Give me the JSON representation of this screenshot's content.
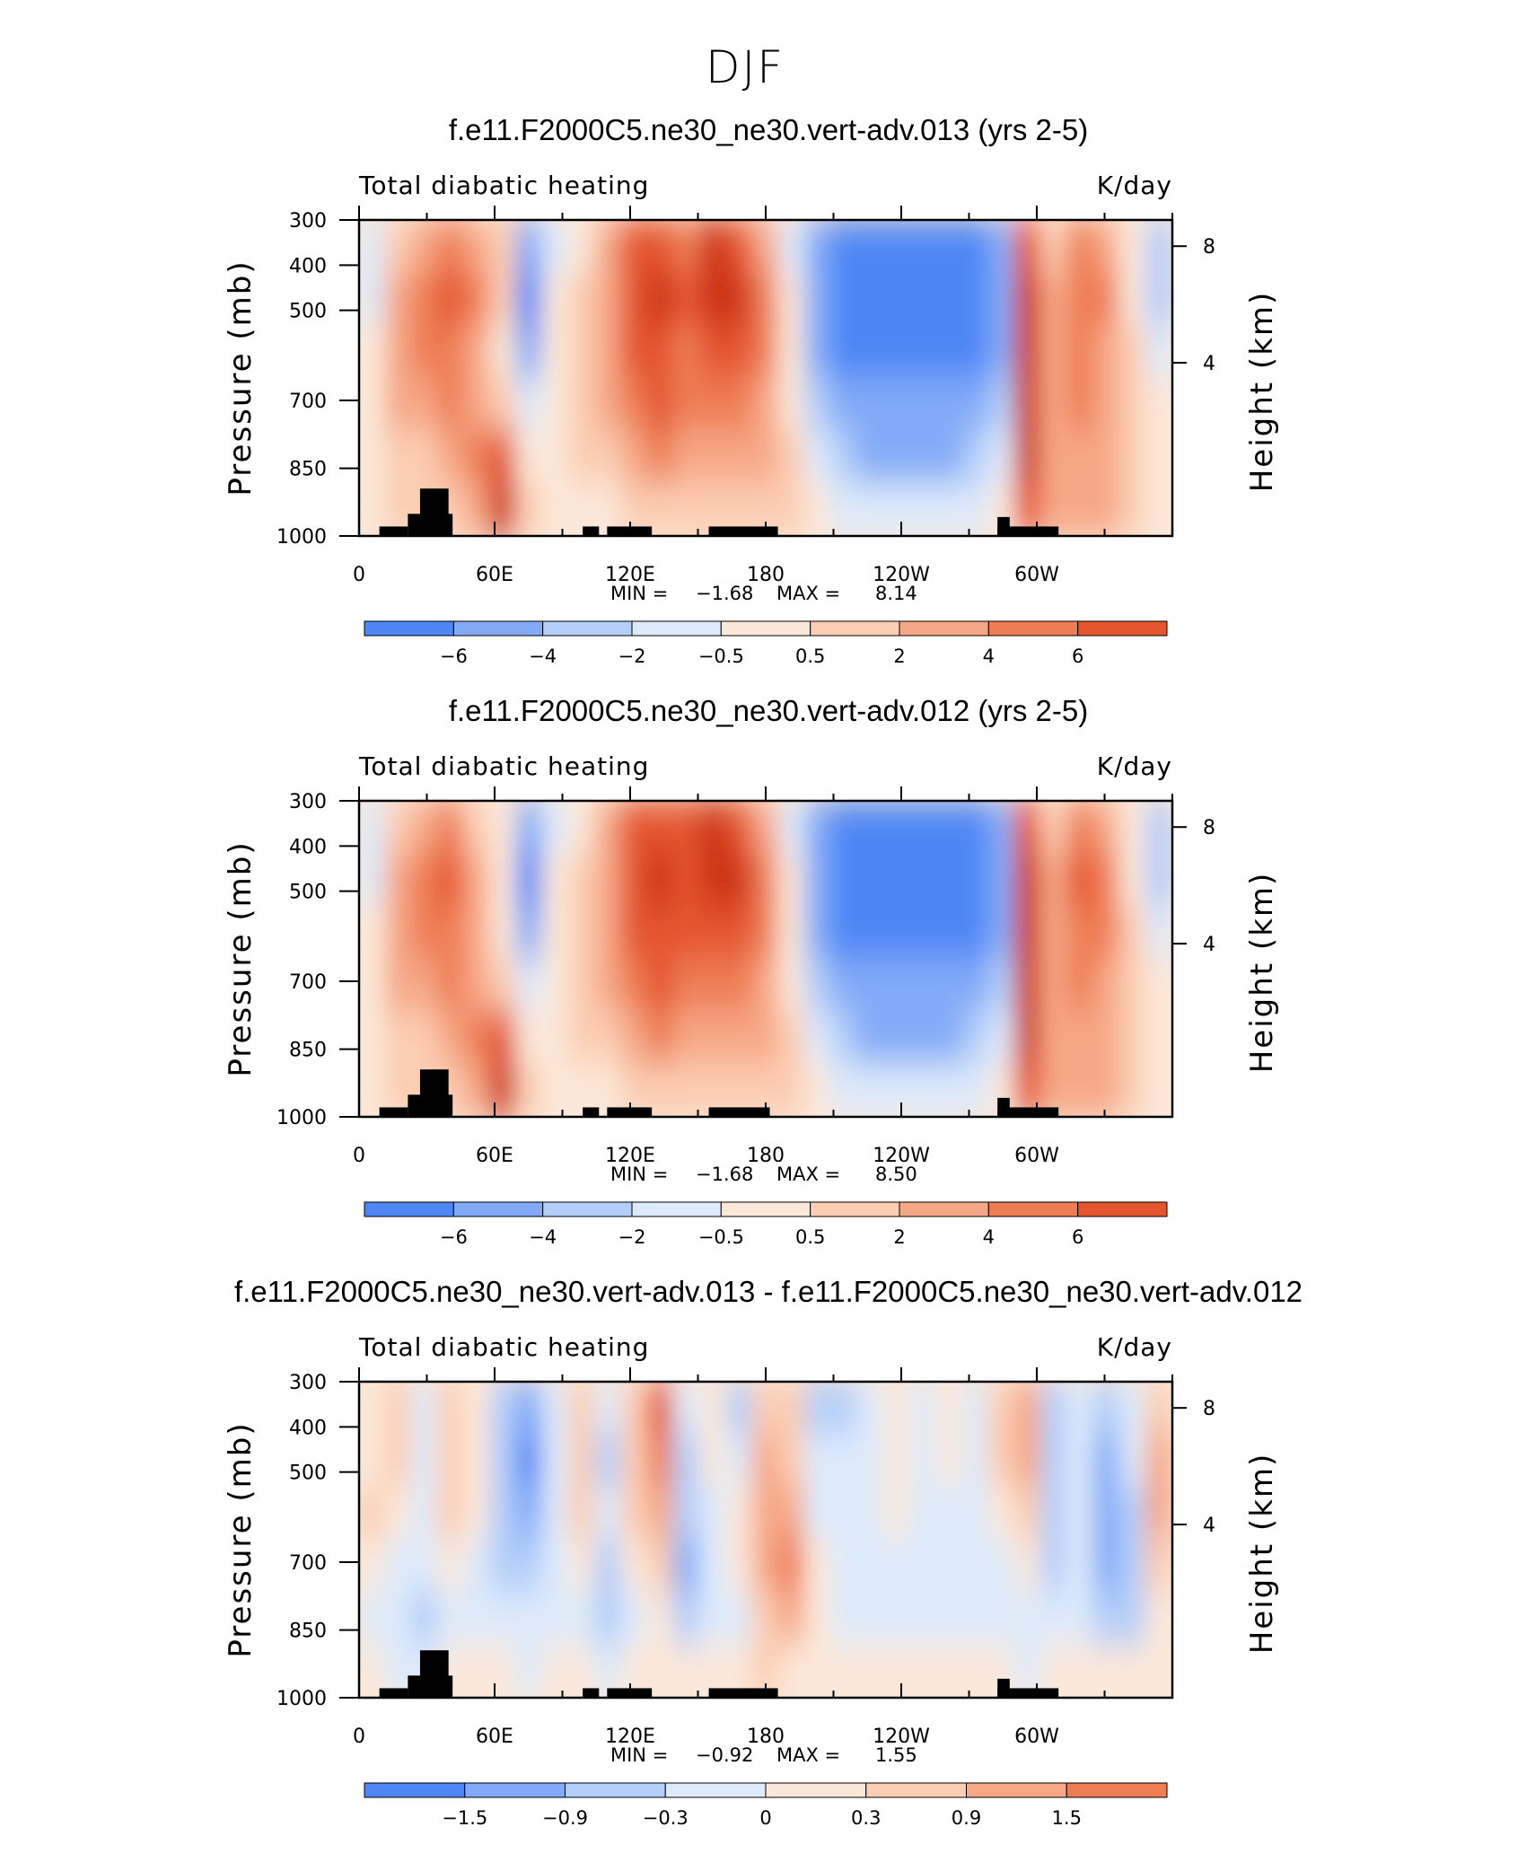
{
  "figure": {
    "title": "DJF"
  },
  "colormap": [
    "#08129e",
    "#0b34d6",
    "#1f5ff0",
    "#4e86f5",
    "#82aaf7",
    "#b3cef9",
    "#ddeafa",
    "#fbe8d9",
    "#fbcdb2",
    "#f6a785",
    "#ee7d54",
    "#e4552e",
    "#cc3616",
    "#a41d0a",
    "#7a0606"
  ],
  "chart_data": [
    {
      "type": "heatmap",
      "title": "f.e11.F2000C5.ne30_ne30.vert-adv.013 (yrs 2-5)",
      "left_label": "Total diabatic heating",
      "right_label": "K/day",
      "ylabel": "Pressure (mb)",
      "y2label": "Height (km)",
      "yticks": [
        "300",
        "400",
        "500",
        "700",
        "850",
        "1000"
      ],
      "y2ticks": [
        "8",
        "4"
      ],
      "xticks": [
        "0",
        "60E",
        "120E",
        "180",
        "120W",
        "60W"
      ],
      "min_label": "MIN =",
      "min": "−1.68",
      "max_label": "MAX =",
      "max": "8.14",
      "levels": [
        "−6",
        "−4",
        "−2",
        "−0.5",
        "0.5",
        "2",
        "4",
        "6"
      ],
      "field": [
        [
          6,
          8,
          9,
          10,
          9,
          8,
          4,
          6,
          7,
          9,
          11,
          11,
          10,
          12,
          11,
          9,
          6,
          4,
          3,
          3,
          3,
          3,
          3,
          3,
          4,
          11,
          8,
          10,
          9,
          7,
          5
        ],
        [
          6,
          9,
          10,
          11,
          10,
          8,
          3,
          7,
          8,
          9,
          11,
          12,
          11,
          12,
          12,
          10,
          7,
          4,
          3,
          3,
          3,
          3,
          3,
          3,
          4,
          12,
          9,
          10,
          10,
          7,
          5
        ],
        [
          7,
          9,
          10,
          10,
          9,
          7,
          4,
          7,
          8,
          9,
          11,
          11,
          10,
          11,
          11,
          10,
          7,
          4,
          3,
          3,
          3,
          3,
          3,
          3,
          4,
          12,
          9,
          10,
          9,
          8,
          6
        ],
        [
          7,
          9,
          9,
          10,
          9,
          8,
          6,
          7,
          8,
          9,
          10,
          11,
          10,
          10,
          10,
          9,
          7,
          5,
          4,
          4,
          4,
          4,
          4,
          4,
          5,
          12,
          9,
          10,
          9,
          8,
          7
        ],
        [
          7,
          8,
          8,
          9,
          10,
          11,
          7,
          7,
          8,
          8,
          9,
          10,
          9,
          9,
          9,
          9,
          8,
          6,
          5,
          4,
          4,
          4,
          4,
          5,
          6,
          12,
          9,
          9,
          9,
          8,
          7
        ],
        [
          7,
          8,
          8,
          8,
          9,
          12,
          8,
          7,
          7,
          7,
          8,
          8,
          8,
          8,
          8,
          8,
          8,
          7,
          6,
          6,
          6,
          6,
          6,
          6,
          7,
          11,
          9,
          9,
          9,
          8,
          7
        ]
      ],
      "mask": [
        [
          0.025,
          0.06,
          0.97
        ],
        [
          0.06,
          0.115,
          0.93
        ],
        [
          0.075,
          0.11,
          0.85
        ],
        [
          0.275,
          0.295,
          0.97
        ],
        [
          0.305,
          0.36,
          0.97
        ],
        [
          0.43,
          0.515,
          0.97
        ],
        [
          0.785,
          0.8,
          0.94
        ],
        [
          0.785,
          0.86,
          0.97
        ]
      ]
    },
    {
      "type": "heatmap",
      "title": "f.e11.F2000C5.ne30_ne30.vert-adv.012 (yrs 2-5)",
      "left_label": "Total diabatic heating",
      "right_label": "K/day",
      "ylabel": "Pressure (mb)",
      "y2label": "Height (km)",
      "yticks": [
        "300",
        "400",
        "500",
        "700",
        "850",
        "1000"
      ],
      "y2ticks": [
        "8",
        "4"
      ],
      "xticks": [
        "0",
        "60E",
        "120E",
        "180",
        "120W",
        "60W"
      ],
      "min_label": "MIN =",
      "min": "−1.68",
      "max_label": "MAX =",
      "max": "8.50",
      "levels": [
        "−6",
        "−4",
        "−2",
        "−0.5",
        "0.5",
        "2",
        "4",
        "6"
      ],
      "field": [
        [
          6,
          8,
          9,
          10,
          8,
          7,
          4,
          6,
          7,
          9,
          11,
          11,
          11,
          12,
          11,
          9,
          6,
          4,
          3,
          3,
          3,
          3,
          3,
          3,
          4,
          11,
          8,
          10,
          9,
          7,
          5
        ],
        [
          6,
          9,
          10,
          11,
          9,
          7,
          3,
          7,
          8,
          9,
          11,
          12,
          11,
          12,
          12,
          10,
          7,
          4,
          3,
          3,
          3,
          3,
          3,
          3,
          4,
          12,
          9,
          11,
          10,
          7,
          5
        ],
        [
          7,
          9,
          10,
          10,
          9,
          7,
          4,
          7,
          8,
          9,
          11,
          11,
          11,
          11,
          11,
          10,
          7,
          4,
          3,
          3,
          3,
          3,
          3,
          3,
          4,
          12,
          9,
          10,
          10,
          8,
          6
        ],
        [
          7,
          9,
          9,
          10,
          9,
          8,
          6,
          7,
          8,
          9,
          10,
          11,
          10,
          10,
          10,
          9,
          7,
          5,
          4,
          4,
          4,
          4,
          4,
          4,
          5,
          12,
          9,
          10,
          9,
          8,
          7
        ],
        [
          7,
          8,
          8,
          9,
          10,
          11,
          7,
          7,
          8,
          8,
          9,
          10,
          9,
          9,
          9,
          9,
          8,
          6,
          5,
          4,
          4,
          4,
          4,
          5,
          6,
          12,
          9,
          9,
          9,
          8,
          7
        ],
        [
          7,
          8,
          8,
          8,
          9,
          12,
          8,
          7,
          7,
          7,
          8,
          8,
          8,
          8,
          8,
          8,
          8,
          7,
          6,
          6,
          6,
          6,
          6,
          6,
          7,
          11,
          9,
          9,
          9,
          8,
          7
        ]
      ],
      "mask": [
        [
          0.025,
          0.06,
          0.97
        ],
        [
          0.06,
          0.115,
          0.93
        ],
        [
          0.075,
          0.11,
          0.85
        ],
        [
          0.275,
          0.295,
          0.97
        ],
        [
          0.305,
          0.36,
          0.97
        ],
        [
          0.43,
          0.505,
          0.97
        ],
        [
          0.785,
          0.8,
          0.94
        ],
        [
          0.785,
          0.86,
          0.97
        ]
      ]
    },
    {
      "type": "heatmap",
      "title": "f.e11.F2000C5.ne30_ne30.vert-adv.013 - f.e11.F2000C5.ne30_ne30.vert-adv.012",
      "left_label": "Total diabatic heating",
      "right_label": "K/day",
      "ylabel": "Pressure (mb)",
      "y2label": "Height (km)",
      "yticks": [
        "300",
        "400",
        "500",
        "700",
        "850",
        "1000"
      ],
      "y2ticks": [
        "8",
        "4"
      ],
      "xticks": [
        "0",
        "60E",
        "120E",
        "180",
        "120W",
        "60W"
      ],
      "min_label": "MIN =",
      "min": "−0.92",
      "max_label": "MAX =",
      "max": "1.55",
      "levels": [
        "−1.5",
        "−0.9",
        "−0.3",
        "0",
        "0.3",
        "0.9",
        "1.5"
      ],
      "field": [
        [
          7,
          8,
          6,
          8,
          7,
          5,
          4,
          6,
          8,
          6,
          8,
          11,
          6,
          7,
          5,
          8,
          8,
          5,
          5,
          6,
          7,
          6,
          7,
          6,
          8,
          9,
          5,
          6,
          5,
          6,
          8
        ],
        [
          7,
          8,
          6,
          8,
          7,
          5,
          3,
          6,
          8,
          5,
          8,
          10,
          5,
          7,
          6,
          9,
          8,
          6,
          6,
          6,
          7,
          6,
          7,
          6,
          8,
          9,
          5,
          6,
          4,
          6,
          9
        ],
        [
          8,
          7,
          6,
          8,
          7,
          5,
          4,
          6,
          8,
          6,
          8,
          9,
          5,
          6,
          7,
          9,
          9,
          6,
          6,
          6,
          7,
          6,
          6,
          6,
          7,
          8,
          5,
          6,
          4,
          5,
          9
        ],
        [
          7,
          6,
          6,
          7,
          6,
          5,
          5,
          6,
          7,
          5,
          7,
          8,
          4,
          6,
          7,
          9,
          10,
          7,
          6,
          6,
          6,
          6,
          6,
          6,
          6,
          7,
          5,
          6,
          4,
          5,
          8
        ],
        [
          6,
          6,
          5,
          6,
          6,
          6,
          6,
          6,
          6,
          5,
          6,
          7,
          5,
          6,
          6,
          8,
          9,
          7,
          6,
          6,
          6,
          6,
          6,
          6,
          6,
          6,
          6,
          6,
          5,
          5,
          7
        ],
        [
          7,
          6,
          6,
          7,
          7,
          7,
          6,
          7,
          7,
          6,
          7,
          7,
          7,
          7,
          7,
          8,
          7,
          7,
          7,
          7,
          7,
          7,
          7,
          7,
          7,
          6,
          7,
          7,
          7,
          7,
          7
        ]
      ],
      "mask": [
        [
          0.025,
          0.06,
          0.97
        ],
        [
          0.06,
          0.115,
          0.93
        ],
        [
          0.075,
          0.11,
          0.85
        ],
        [
          0.275,
          0.295,
          0.97
        ],
        [
          0.305,
          0.36,
          0.97
        ],
        [
          0.43,
          0.515,
          0.97
        ],
        [
          0.785,
          0.8,
          0.94
        ],
        [
          0.785,
          0.86,
          0.97
        ]
      ]
    }
  ]
}
